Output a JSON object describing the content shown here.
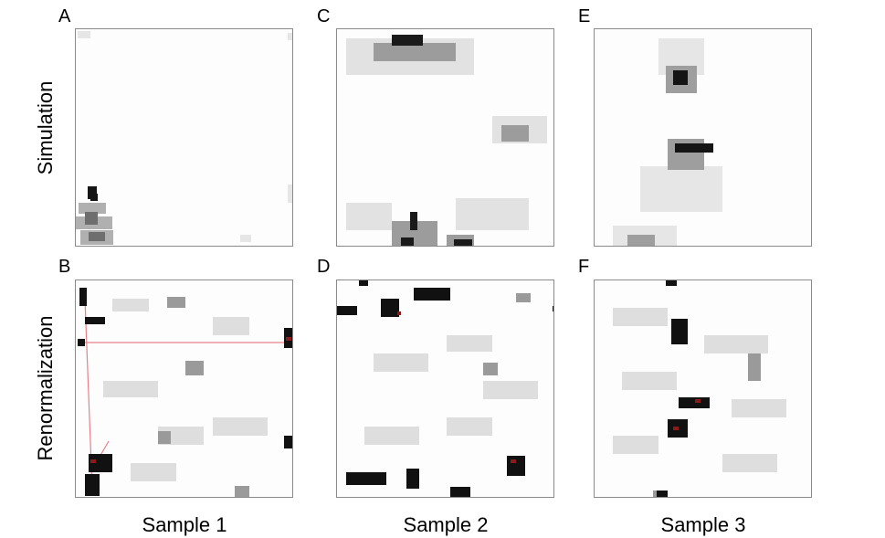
{
  "row_labels": [
    "Simulation",
    "Renormalization"
  ],
  "column_labels": [
    "Sample 1",
    "Sample 2",
    "Sample 3"
  ],
  "panels": [
    {
      "letter": "A",
      "row": "Simulation",
      "column": "Sample 1"
    },
    {
      "letter": "C",
      "row": "Simulation",
      "column": "Sample 2"
    },
    {
      "letter": "E",
      "row": "Simulation",
      "column": "Sample 3"
    },
    {
      "letter": "B",
      "row": "Renormalization",
      "column": "Sample 1"
    },
    {
      "letter": "D",
      "row": "Renormalization",
      "column": "Sample 2"
    },
    {
      "letter": "F",
      "row": "Renormalization",
      "column": "Sample 3"
    }
  ],
  "colors": {
    "background": "#ffffff",
    "panel_border": "#8a8a8a",
    "cluster_dark": "#111111",
    "cluster_gray": "#9a9a9a",
    "connector": "#e8808a",
    "highlight": "#8b1a1a"
  }
}
